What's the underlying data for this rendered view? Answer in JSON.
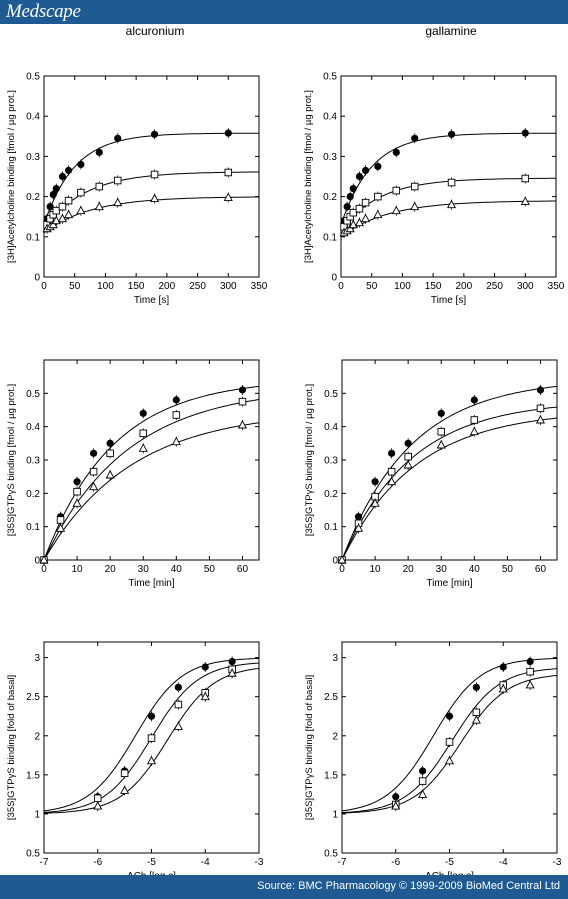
{
  "brand": "Medscape",
  "footer": {
    "source": "Source: BMC Pharmacology © 1999-2009 BioMed Central Ltd"
  },
  "columns": [
    "alcuronium",
    "gallamine"
  ],
  "colors": {
    "header_bg": "#1f5a93",
    "marks": "#000000"
  },
  "chart_data": [
    {
      "type": "line",
      "panel": "alcuronium-ACh-binding-time",
      "xlabel": "Time [s]",
      "ylabel": "[3H]Acetylcholine binding [fmol / µg prot.]",
      "xlim": [
        0,
        350
      ],
      "ylim": [
        0,
        0.5
      ],
      "xticks": [
        0,
        50,
        100,
        150,
        200,
        250,
        300,
        350
      ],
      "yticks": [
        0,
        0.1,
        0.2,
        0.3,
        0.4,
        0.5
      ],
      "series": [
        {
          "marker": "filled-circle",
          "x": [
            5,
            10,
            15,
            20,
            30,
            40,
            60,
            90,
            120,
            180,
            300
          ],
          "y": [
            0.145,
            0.175,
            0.205,
            0.22,
            0.25,
            0.265,
            0.28,
            0.31,
            0.345,
            0.355,
            0.358
          ],
          "fit": [
            0.13,
            0.358,
            0.02
          ]
        },
        {
          "marker": "open-square",
          "x": [
            5,
            10,
            15,
            20,
            30,
            40,
            60,
            90,
            120,
            180,
            300
          ],
          "y": [
            0.13,
            0.145,
            0.155,
            0.165,
            0.175,
            0.19,
            0.21,
            0.225,
            0.24,
            0.255,
            0.26
          ],
          "fit": [
            0.12,
            0.262,
            0.015
          ]
        },
        {
          "marker": "open-triangle",
          "x": [
            5,
            10,
            15,
            20,
            30,
            40,
            60,
            90,
            120,
            180,
            300
          ],
          "y": [
            0.12,
            0.125,
            0.13,
            0.14,
            0.145,
            0.155,
            0.165,
            0.175,
            0.185,
            0.195,
            0.198
          ],
          "fit": [
            0.11,
            0.2,
            0.013
          ]
        }
      ]
    },
    {
      "type": "line",
      "panel": "gallamine-ACh-binding-time",
      "xlabel": "Time [s]",
      "ylabel": "[3H]Acetylcholine binding [fmol / µg prot.]",
      "xlim": [
        0,
        350
      ],
      "ylim": [
        0,
        0.5
      ],
      "xticks": [
        0,
        50,
        100,
        150,
        200,
        250,
        300,
        350
      ],
      "yticks": [
        0,
        0.1,
        0.2,
        0.3,
        0.4,
        0.5
      ],
      "series": [
        {
          "marker": "filled-circle",
          "x": [
            5,
            10,
            15,
            20,
            30,
            40,
            60,
            90,
            120,
            180,
            300
          ],
          "y": [
            0.14,
            0.175,
            0.2,
            0.22,
            0.25,
            0.265,
            0.275,
            0.31,
            0.345,
            0.355,
            0.358
          ],
          "fit": [
            0.13,
            0.358,
            0.02
          ]
        },
        {
          "marker": "open-square",
          "x": [
            5,
            10,
            15,
            20,
            30,
            40,
            60,
            90,
            120,
            180,
            300
          ],
          "y": [
            0.125,
            0.14,
            0.15,
            0.16,
            0.17,
            0.185,
            0.2,
            0.215,
            0.225,
            0.235,
            0.245
          ],
          "fit": [
            0.115,
            0.246,
            0.016
          ]
        },
        {
          "marker": "open-triangle",
          "x": [
            5,
            10,
            15,
            20,
            30,
            40,
            60,
            90,
            120,
            180,
            300
          ],
          "y": [
            0.11,
            0.115,
            0.12,
            0.13,
            0.135,
            0.145,
            0.155,
            0.165,
            0.175,
            0.18,
            0.188
          ],
          "fit": [
            0.1,
            0.19,
            0.013
          ]
        }
      ]
    },
    {
      "type": "line",
      "panel": "alcuronium-GTPyS-time",
      "xlabel": "Time [min]",
      "ylabel": "[35S]GTPγS binding [fmol / µg prot.]",
      "xlim": [
        0,
        65
      ],
      "ylim": [
        0,
        0.6
      ],
      "xticks": [
        0,
        10,
        20,
        30,
        40,
        50,
        60
      ],
      "yticks": [
        0,
        0.1,
        0.2,
        0.3,
        0.4,
        0.5
      ],
      "series": [
        {
          "marker": "filled-circle",
          "x": [
            0,
            5,
            10,
            15,
            20,
            30,
            40,
            60
          ],
          "y": [
            0,
            0.13,
            0.235,
            0.32,
            0.35,
            0.44,
            0.48,
            0.51
          ],
          "fit": [
            0,
            0.545,
            0.048
          ]
        },
        {
          "marker": "open-square",
          "x": [
            0,
            5,
            10,
            15,
            20,
            30,
            40,
            60
          ],
          "y": [
            0,
            0.12,
            0.205,
            0.265,
            0.32,
            0.38,
            0.435,
            0.475
          ],
          "fit": [
            0,
            0.52,
            0.04
          ]
        },
        {
          "marker": "open-triangle",
          "x": [
            0,
            5,
            10,
            15,
            20,
            30,
            40,
            60
          ],
          "y": [
            0,
            0.095,
            0.17,
            0.22,
            0.255,
            0.335,
            0.355,
            0.405
          ],
          "fit": [
            0,
            0.45,
            0.038
          ]
        }
      ]
    },
    {
      "type": "line",
      "panel": "gallamine-GTPyS-time",
      "xlabel": "Time [min]",
      "ylabel": "[35S]GTPγS binding [fmol / µg prot.]",
      "xlim": [
        0,
        65
      ],
      "ylim": [
        0,
        0.6
      ],
      "xticks": [
        0,
        10,
        20,
        30,
        40,
        50,
        60
      ],
      "yticks": [
        0,
        0.1,
        0.2,
        0.3,
        0.4,
        0.5
      ],
      "series": [
        {
          "marker": "filled-circle",
          "x": [
            0,
            5,
            10,
            15,
            20,
            30,
            40,
            60
          ],
          "y": [
            0,
            0.13,
            0.235,
            0.32,
            0.35,
            0.44,
            0.48,
            0.51
          ],
          "fit": [
            0,
            0.545,
            0.048
          ]
        },
        {
          "marker": "open-square",
          "x": [
            0,
            5,
            10,
            15,
            20,
            30,
            40,
            60
          ],
          "y": [
            0,
            0.11,
            0.19,
            0.265,
            0.31,
            0.385,
            0.42,
            0.455
          ],
          "fit": [
            0,
            0.48,
            0.048
          ]
        },
        {
          "marker": "open-triangle",
          "x": [
            0,
            5,
            10,
            15,
            20,
            30,
            40,
            60
          ],
          "y": [
            0,
            0.095,
            0.17,
            0.235,
            0.285,
            0.345,
            0.385,
            0.42
          ],
          "fit": [
            0,
            0.45,
            0.045
          ]
        }
      ]
    },
    {
      "type": "line",
      "panel": "alcuronium-GTPyS-ACh-dose",
      "xlabel": "ACh [log c]",
      "ylabel": "[35S]GTPγS binding [fold of basal]",
      "xlim": [
        -7,
        -3
      ],
      "ylim": [
        0.5,
        3.2
      ],
      "xticks": [
        -7,
        -6,
        -5,
        -4,
        -3
      ],
      "yticks": [
        0.5,
        1,
        1.5,
        2,
        2.5,
        3
      ],
      "series": [
        {
          "marker": "filled-circle",
          "x": [
            -6,
            -5.5,
            -5,
            -4.5,
            -4,
            -3.5
          ],
          "y": [
            1.22,
            1.55,
            2.25,
            2.62,
            2.88,
            2.95
          ],
          "fit": [
            1,
            3.0,
            -5.3
          ]
        },
        {
          "marker": "open-square",
          "x": [
            -6,
            -5.5,
            -5,
            -4.5,
            -4,
            -3.5
          ],
          "y": [
            1.2,
            1.52,
            1.97,
            2.4,
            2.55,
            2.85
          ],
          "fit": [
            1,
            2.95,
            -5.0
          ]
        },
        {
          "marker": "open-triangle",
          "x": [
            -6,
            -5.5,
            -5,
            -4.5,
            -4,
            -3.5
          ],
          "y": [
            1.1,
            1.3,
            1.68,
            2.12,
            2.5,
            2.8
          ],
          "fit": [
            1,
            2.9,
            -4.7
          ]
        }
      ]
    },
    {
      "type": "line",
      "panel": "gallamine-GTPyS-ACh-dose",
      "xlabel": "ACh [log c]",
      "ylabel": "[35S]GTPγS binding [fold of basal]",
      "xlim": [
        -7,
        -3
      ],
      "ylim": [
        0.5,
        3.2
      ],
      "xticks": [
        -7,
        -6,
        -5,
        -4,
        -3
      ],
      "yticks": [
        0.5,
        1,
        1.5,
        2,
        2.5,
        3
      ],
      "series": [
        {
          "marker": "filled-circle",
          "x": [
            -6,
            -5.5,
            -5,
            -4.5,
            -4,
            -3.5
          ],
          "y": [
            1.22,
            1.55,
            2.25,
            2.62,
            2.88,
            2.95
          ],
          "fit": [
            1,
            3.0,
            -5.3
          ]
        },
        {
          "marker": "open-square",
          "x": [
            -6,
            -5.5,
            -5,
            -4.5,
            -4,
            -3.5
          ],
          "y": [
            1.12,
            1.42,
            1.92,
            2.3,
            2.65,
            2.82
          ],
          "fit": [
            1,
            2.88,
            -4.95
          ]
        },
        {
          "marker": "open-triangle",
          "x": [
            -6,
            -5.5,
            -5,
            -4.5,
            -4,
            -3.5
          ],
          "y": [
            1.1,
            1.25,
            1.68,
            2.2,
            2.6,
            2.65
          ],
          "fit": [
            1,
            2.8,
            -4.8
          ]
        }
      ]
    }
  ]
}
